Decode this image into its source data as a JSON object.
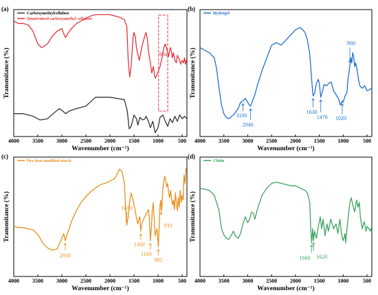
{
  "figure": {
    "background": "#ffffff"
  },
  "chart_data": [
    {
      "type": "line",
      "panel_label": "(a)",
      "xlabel": "Wavenumber (cm⁻¹)",
      "ylabel": "Transmitance (%)",
      "xlim": [
        4000,
        400
      ],
      "x_ticks": [
        "4000",
        "3500",
        "3000",
        "2500",
        "2000",
        "1500",
        "1000",
        "500"
      ],
      "x_tick_values": [
        4000,
        3500,
        3000,
        2500,
        2000,
        1500,
        1000,
        500
      ],
      "ylim": [
        0,
        100
      ],
      "legend": "top-left",
      "series": [
        {
          "name": "Carboxymethylcellulose",
          "color": "#333333",
          "x": [
            4000,
            3800,
            3600,
            3450,
            3300,
            3150,
            3050,
            2980,
            2920,
            2850,
            2700,
            2500,
            2300,
            2150,
            2000,
            1850,
            1700,
            1640,
            1600,
            1560,
            1500,
            1450,
            1420,
            1380,
            1320,
            1270,
            1250,
            1200,
            1160,
            1110,
            1060,
            1030,
            1000,
            960,
            900,
            850,
            800,
            750,
            700,
            650,
            600,
            550,
            500,
            450,
            400
          ],
          "y": [
            18,
            18,
            16,
            13,
            14,
            19,
            22,
            20,
            18,
            20,
            22,
            24,
            31,
            31,
            31,
            30,
            29,
            20,
            6,
            8,
            17,
            14,
            9,
            15,
            13,
            14,
            16,
            12,
            7,
            12,
            3,
            5,
            7,
            15,
            17,
            12,
            8,
            14,
            11,
            16,
            12,
            17,
            14,
            16,
            14
          ]
        },
        {
          "name": "Quaternized carboxymethyl cellulose",
          "color": "#e8323c",
          "x": [
            4000,
            3900,
            3800,
            3700,
            3600,
            3500,
            3420,
            3300,
            3200,
            3100,
            3000,
            2950,
            2920,
            2880,
            2800,
            2700,
            2600,
            2500,
            2400,
            2300,
            2200,
            2100,
            2000,
            1900,
            1800,
            1700,
            1650,
            1620,
            1590,
            1560,
            1520,
            1500,
            1470,
            1450,
            1420,
            1390,
            1360,
            1330,
            1300,
            1270,
            1250,
            1220,
            1200,
            1160,
            1130,
            1100,
            1060,
            1030,
            1000,
            960,
            930,
            904,
            880,
            850,
            820,
            800,
            780,
            760,
            740,
            720,
            700,
            680,
            650,
            620,
            600,
            560,
            530,
            500,
            470,
            450,
            430,
            400
          ],
          "y": [
            91,
            89,
            89,
            88,
            83,
            73,
            70,
            73,
            79,
            83,
            85,
            80,
            78,
            81,
            85,
            89,
            91,
            93,
            95,
            96,
            96,
            96,
            96,
            95,
            94,
            92,
            87,
            60,
            47,
            55,
            78,
            82,
            78,
            70,
            65,
            60,
            66,
            72,
            76,
            80,
            82,
            76,
            67,
            58,
            50,
            55,
            46,
            48,
            51,
            55,
            60,
            65,
            70,
            73,
            69,
            66,
            63,
            68,
            70,
            66,
            62,
            66,
            60,
            58,
            64,
            61,
            57,
            60,
            58,
            62,
            57,
            62
          ]
        }
      ],
      "highlight": {
        "x_range": [
          990,
          800
        ],
        "label": "904",
        "color": "#e8323c"
      }
    },
    {
      "type": "line",
      "panel_label": "(b)",
      "xlabel": "Wavenumber (cm⁻¹)",
      "ylabel": "Transmitance (%)",
      "xlim": [
        4000,
        400
      ],
      "x_ticks": [
        "4000",
        "3500",
        "3000",
        "2500",
        "2000",
        "1500",
        "1000",
        "500"
      ],
      "x_tick_values": [
        4000,
        3500,
        3000,
        2500,
        2000,
        1500,
        1000,
        500
      ],
      "ylim": [
        0,
        100
      ],
      "legend": "top-left",
      "series": [
        {
          "name": "Hydrogel",
          "color": "#1f6fd1",
          "x": [
            4000,
            3900,
            3800,
            3700,
            3650,
            3600,
            3550,
            3500,
            3450,
            3400,
            3300,
            3200,
            3150,
            3100,
            3050,
            3000,
            2970,
            2940,
            2900,
            2850,
            2800,
            2700,
            2600,
            2500,
            2400,
            2300,
            2200,
            2100,
            2000,
            1900,
            1850,
            1800,
            1750,
            1700,
            1680,
            1650,
            1630,
            1600,
            1560,
            1520,
            1500,
            1470,
            1440,
            1400,
            1350,
            1300,
            1250,
            1200,
            1150,
            1100,
            1060,
            1040,
            1020,
            1000,
            960,
            920,
            900,
            880,
            860,
            840,
            820,
            800,
            780,
            760,
            740,
            720,
            700,
            680,
            650,
            600,
            550,
            500,
            450,
            400
          ],
          "y": [
            70,
            68,
            66,
            62,
            53,
            38,
            25,
            18,
            15,
            14,
            17,
            22,
            27,
            28,
            30,
            27,
            25,
            24,
            28,
            33,
            40,
            52,
            62,
            72,
            74,
            72,
            76,
            80,
            84,
            86,
            84,
            82,
            76,
            65,
            55,
            40,
            32,
            34,
            42,
            45,
            42,
            31,
            35,
            41,
            40,
            42,
            43,
            36,
            33,
            30,
            25,
            26,
            28,
            27,
            32,
            35,
            45,
            50,
            56,
            62,
            58,
            66,
            63,
            55,
            58,
            55,
            50,
            45,
            40,
            38,
            40,
            36,
            37,
            38
          ]
        }
      ],
      "annotations": [
        {
          "label": "3100",
          "x": 3100
        },
        {
          "label": "2940",
          "x": 2940
        },
        {
          "label": "1630",
          "x": 1630
        },
        {
          "label": "1470",
          "x": 1470
        },
        {
          "label": "1020",
          "x": 1020
        },
        {
          "label": "860",
          "x": 860
        }
      ]
    },
    {
      "type": "line",
      "panel_label": "(c)",
      "xlabel": "Wavenumber (cm⁻¹)",
      "ylabel": "Transmitance (%)",
      "xlim": [
        4000,
        400
      ],
      "x_ticks": [
        "4000",
        "3500",
        "3000",
        "2500",
        "2000",
        "1500",
        "1000",
        "500"
      ],
      "x_tick_values": [
        4000,
        3500,
        3000,
        2500,
        2000,
        1500,
        1000,
        500
      ],
      "ylim": [
        0,
        100
      ],
      "legend": "top-left",
      "series": [
        {
          "name": "Dry-heat modified starch",
          "color": "#e8901c",
          "x": [
            4000,
            3900,
            3800,
            3700,
            3600,
            3500,
            3450,
            3400,
            3300,
            3200,
            3100,
            3000,
            2960,
            2930,
            2900,
            2850,
            2800,
            2700,
            2600,
            2500,
            2400,
            2300,
            2200,
            2100,
            2000,
            1900,
            1800,
            1750,
            1700,
            1680,
            1650,
            1620,
            1600,
            1560,
            1520,
            1480,
            1450,
            1420,
            1400,
            1380,
            1360,
            1340,
            1300,
            1250,
            1200,
            1180,
            1160,
            1140,
            1120,
            1100,
            1080,
            1060,
            1040,
            1020,
            1000,
            995,
            980,
            960,
            940,
            933,
            920,
            900,
            880,
            860,
            840,
            820,
            800,
            780,
            760,
            740,
            720,
            700,
            680,
            660,
            640,
            620,
            600,
            580,
            560,
            540,
            520,
            500,
            480,
            460,
            440,
            420,
            400
          ],
          "y": [
            42,
            41,
            41,
            40,
            39,
            35,
            32,
            28,
            24,
            22,
            23,
            32,
            36,
            30,
            34,
            40,
            46,
            55,
            62,
            67,
            71,
            74,
            77,
            78,
            80,
            82,
            90,
            88,
            78,
            60,
            43,
            50,
            60,
            70,
            64,
            56,
            49,
            44,
            48,
            50,
            38,
            44,
            48,
            52,
            56,
            48,
            30,
            40,
            55,
            62,
            48,
            34,
            38,
            40,
            28,
            25,
            38,
            60,
            64,
            55,
            58,
            74,
            80,
            84,
            80,
            75,
            78,
            70,
            66,
            72,
            66,
            60,
            64,
            56,
            70,
            62,
            55,
            66,
            58,
            72,
            62,
            68,
            64,
            85,
            78,
            90,
            92
          ]
        }
      ],
      "annotations": [
        {
          "label": "2930",
          "x": 2930
        },
        {
          "label": "1650",
          "x": 1650
        },
        {
          "label": "1360",
          "x": 1360
        },
        {
          "label": "1160",
          "x": 1160
        },
        {
          "label": "995",
          "x": 995
        },
        {
          "label": "933",
          "x": 933
        }
      ]
    },
    {
      "type": "line",
      "panel_label": "(d)",
      "xlabel": "Wavenumber (cm⁻¹)",
      "ylabel": "Transmitance (%)",
      "xlim": [
        4000,
        400
      ],
      "x_ticks": [
        "4000",
        "3500",
        "3000",
        "2500",
        "2000",
        "1500",
        "1000",
        "500"
      ],
      "x_tick_values": [
        4000,
        3500,
        3000,
        2500,
        2000,
        1500,
        1000,
        500
      ],
      "ylim": [
        0,
        100
      ],
      "legend": "top-left",
      "series": [
        {
          "name": "Chitin",
          "color": "#3fa35f",
          "x": [
            4000,
            3900,
            3800,
            3700,
            3600,
            3550,
            3500,
            3450,
            3400,
            3350,
            3300,
            3260,
            3200,
            3150,
            3100,
            3050,
            3000,
            2960,
            2920,
            2880,
            2850,
            2800,
            2700,
            2600,
            2500,
            2400,
            2300,
            2200,
            2100,
            2000,
            1900,
            1800,
            1750,
            1700,
            1680,
            1660,
            1640,
            1620,
            1600,
            1560,
            1520,
            1480,
            1450,
            1420,
            1380,
            1340,
            1310,
            1260,
            1200,
            1150,
            1110,
            1070,
            1030,
            1000,
            960,
            950,
            900,
            860,
            830,
            800,
            760,
            720,
            690,
            660,
            640,
            600,
            560,
            520,
            500,
            460,
            430,
            400
          ],
          "y": [
            74,
            73,
            72,
            68,
            55,
            40,
            35,
            32,
            31,
            34,
            38,
            34,
            32,
            36,
            44,
            50,
            45,
            48,
            54,
            53,
            48,
            56,
            68,
            74,
            78,
            79,
            78,
            77,
            76,
            76,
            74,
            72,
            70,
            62,
            40,
            28,
            40,
            30,
            38,
            32,
            42,
            50,
            40,
            48,
            34,
            44,
            38,
            48,
            40,
            44,
            36,
            48,
            34,
            30,
            36,
            28,
            48,
            62,
            66,
            60,
            54,
            64,
            58,
            62,
            50,
            40,
            46,
            38,
            42,
            40,
            38,
            42
          ]
        }
      ],
      "annotations": [
        {
          "label": "1660",
          "x": 1660
        },
        {
          "label": "1620",
          "x": 1620
        }
      ]
    }
  ]
}
